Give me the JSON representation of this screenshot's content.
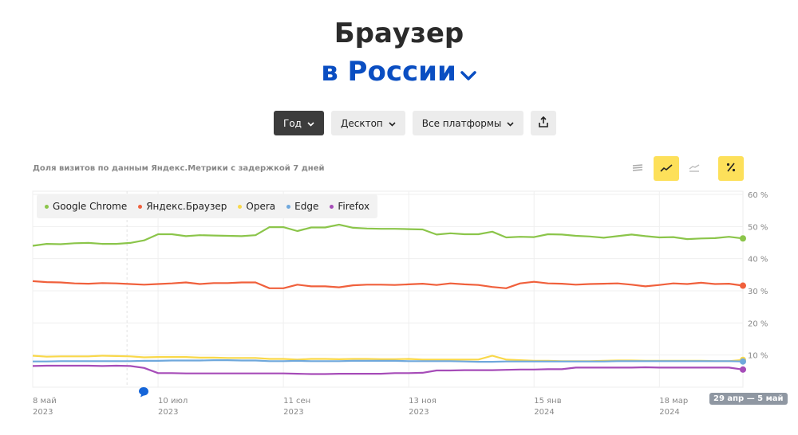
{
  "header": {
    "title_line1": "Браузер",
    "title_line2": "в России",
    "region_dropdown_icon": "chevron-down-icon"
  },
  "controls": {
    "period": "Год",
    "device": "Десктоп",
    "platform": "Все платформы",
    "export_icon": "share-icon"
  },
  "subtitle": "Доля визитов по данным Яндекс.Метрики с задержкой 7 дней",
  "view_modes": {
    "stacked_icon": "stacked-area-icon",
    "line_icon": "line-chart-icon",
    "area_icon": "area-chart-icon",
    "percent_icon": "percent-icon",
    "active": "line",
    "percent_active": true
  },
  "range_badge": "29 апр — 5 май",
  "colors": {
    "accent_yellow": "#fde05a",
    "brand_blue": "#0a4ec2"
  },
  "chart_data": {
    "type": "line",
    "x": [
      "2023-05-08",
      "2023-05-15",
      "2023-05-22",
      "2023-05-29",
      "2023-06-05",
      "2023-06-12",
      "2023-06-19",
      "2023-06-26",
      "2023-07-03",
      "2023-07-10",
      "2023-07-17",
      "2023-07-24",
      "2023-07-31",
      "2023-08-07",
      "2023-08-14",
      "2023-08-21",
      "2023-08-28",
      "2023-09-04",
      "2023-09-11",
      "2023-09-18",
      "2023-09-25",
      "2023-10-02",
      "2023-10-09",
      "2023-10-16",
      "2023-10-23",
      "2023-10-30",
      "2023-11-06",
      "2023-11-13",
      "2023-11-20",
      "2023-11-27",
      "2023-12-04",
      "2023-12-11",
      "2023-12-18",
      "2023-12-25",
      "2024-01-01",
      "2024-01-08",
      "2024-01-15",
      "2024-01-22",
      "2024-01-29",
      "2024-02-05",
      "2024-02-12",
      "2024-02-19",
      "2024-02-26",
      "2024-03-04",
      "2024-03-11",
      "2024-03-18",
      "2024-03-25",
      "2024-04-01",
      "2024-04-08",
      "2024-04-15",
      "2024-04-22",
      "2024-04-29"
    ],
    "x_ticks": [
      {
        "date": "2023-05-08",
        "day": "8 май",
        "year": "2023"
      },
      {
        "date": "2023-07-10",
        "day": "10 июл",
        "year": "2023"
      },
      {
        "date": "2023-09-11",
        "day": "11 сен",
        "year": "2023"
      },
      {
        "date": "2023-11-13",
        "day": "13 ноя",
        "year": "2023"
      },
      {
        "date": "2024-01-15",
        "day": "15 янв",
        "year": "2024"
      },
      {
        "date": "2024-03-18",
        "day": "18 мар",
        "year": "2024"
      }
    ],
    "y_ticks": [
      "10 %",
      "20 %",
      "30 %",
      "40 %",
      "50 %",
      "60 %"
    ],
    "ylim": [
      0,
      60
    ],
    "y_axis_position": "right",
    "grid": true,
    "legend_position": "top-left",
    "series": [
      {
        "name": "Google Chrome",
        "color": "#8bc54a",
        "values": [
          44,
          44.6,
          44.5,
          44.8,
          44.9,
          44.6,
          44.6,
          44.9,
          45.7,
          47.6,
          47.6,
          47,
          47.3,
          47.2,
          47.1,
          47,
          47.3,
          49.8,
          49.8,
          48.6,
          49.7,
          49.7,
          50.6,
          49.6,
          49.4,
          49.3,
          49.3,
          49.2,
          49.1,
          47.5,
          47.9,
          47.6,
          47.6,
          48.4,
          46.6,
          46.8,
          46.7,
          47.6,
          47.5,
          47.1,
          46.9,
          46.5,
          47,
          47.5,
          47,
          46.6,
          46.7,
          46.1,
          46.3,
          46.4,
          46.8,
          46.3
        ]
      },
      {
        "name": "Яндекс.Браузер",
        "color": "#f0603c",
        "values": [
          33,
          32.7,
          32.6,
          32.3,
          32.2,
          32.4,
          32.3,
          32.1,
          31.9,
          32.1,
          32.3,
          32.6,
          32.1,
          32.4,
          32.4,
          32.6,
          32.6,
          30.8,
          30.8,
          31.9,
          31.4,
          31.4,
          31.1,
          31.7,
          31.9,
          31.9,
          31.8,
          32,
          32.2,
          31.8,
          32.3,
          32,
          31.8,
          31.2,
          30.8,
          32.3,
          32.8,
          32.3,
          32.2,
          31.9,
          32.1,
          32.2,
          32.3,
          31.9,
          31.4,
          31.8,
          32.3,
          32.1,
          32.5,
          32.1,
          32.2,
          31.6
        ]
      },
      {
        "name": "Opera",
        "color": "#f9d84a",
        "values": [
          9.8,
          9.5,
          9.6,
          9.6,
          9.6,
          9.8,
          9.7,
          9.6,
          9.3,
          9.4,
          9.4,
          9.4,
          9.2,
          9.2,
          9.1,
          9.1,
          9.1,
          8.8,
          8.8,
          8.6,
          8.8,
          8.8,
          8.7,
          8.8,
          8.8,
          8.7,
          8.7,
          8.8,
          8.6,
          8.6,
          8.6,
          8.6,
          8.6,
          9.8,
          8.6,
          8.4,
          8.2,
          8.2,
          8.1,
          8.1,
          8.1,
          8.2,
          8.3,
          8.3,
          8.2,
          8.2,
          8.2,
          8.2,
          8.2,
          8.1,
          8.1,
          8.5
        ]
      },
      {
        "name": "Edge",
        "color": "#6fa8dc",
        "values": [
          8,
          8,
          8.1,
          8.1,
          8.1,
          8.1,
          8.1,
          8.1,
          8.2,
          8.2,
          8.3,
          8.3,
          8.3,
          8.4,
          8.4,
          8.3,
          8.3,
          8.1,
          8.1,
          8.2,
          8.1,
          8.1,
          8.1,
          8.2,
          8.2,
          8.2,
          8.2,
          8.1,
          8.1,
          8.1,
          8.1,
          8,
          7.9,
          7.9,
          8,
          8,
          8,
          8,
          8,
          8,
          8,
          8,
          8.1,
          8.1,
          8.1,
          8.1,
          8.1,
          8.1,
          8.1,
          8.1,
          8.1,
          8
        ]
      },
      {
        "name": "Firefox",
        "color": "#a64cb8",
        "values": [
          6.6,
          6.7,
          6.7,
          6.7,
          6.7,
          6.6,
          6.7,
          6.6,
          6,
          4.4,
          4.4,
          4.3,
          4.3,
          4.3,
          4.3,
          4.3,
          4.3,
          4.3,
          4.3,
          4.2,
          4.1,
          4.1,
          4.2,
          4.2,
          4.2,
          4.2,
          4.4,
          4.4,
          4.5,
          5.2,
          5.2,
          5.3,
          5.3,
          5.3,
          5.4,
          5.5,
          5.5,
          5.6,
          5.6,
          6.1,
          6.1,
          6.1,
          6.1,
          6.1,
          6.2,
          6.1,
          6.1,
          6.1,
          6.1,
          6.1,
          6.1,
          5.5
        ]
      }
    ]
  }
}
